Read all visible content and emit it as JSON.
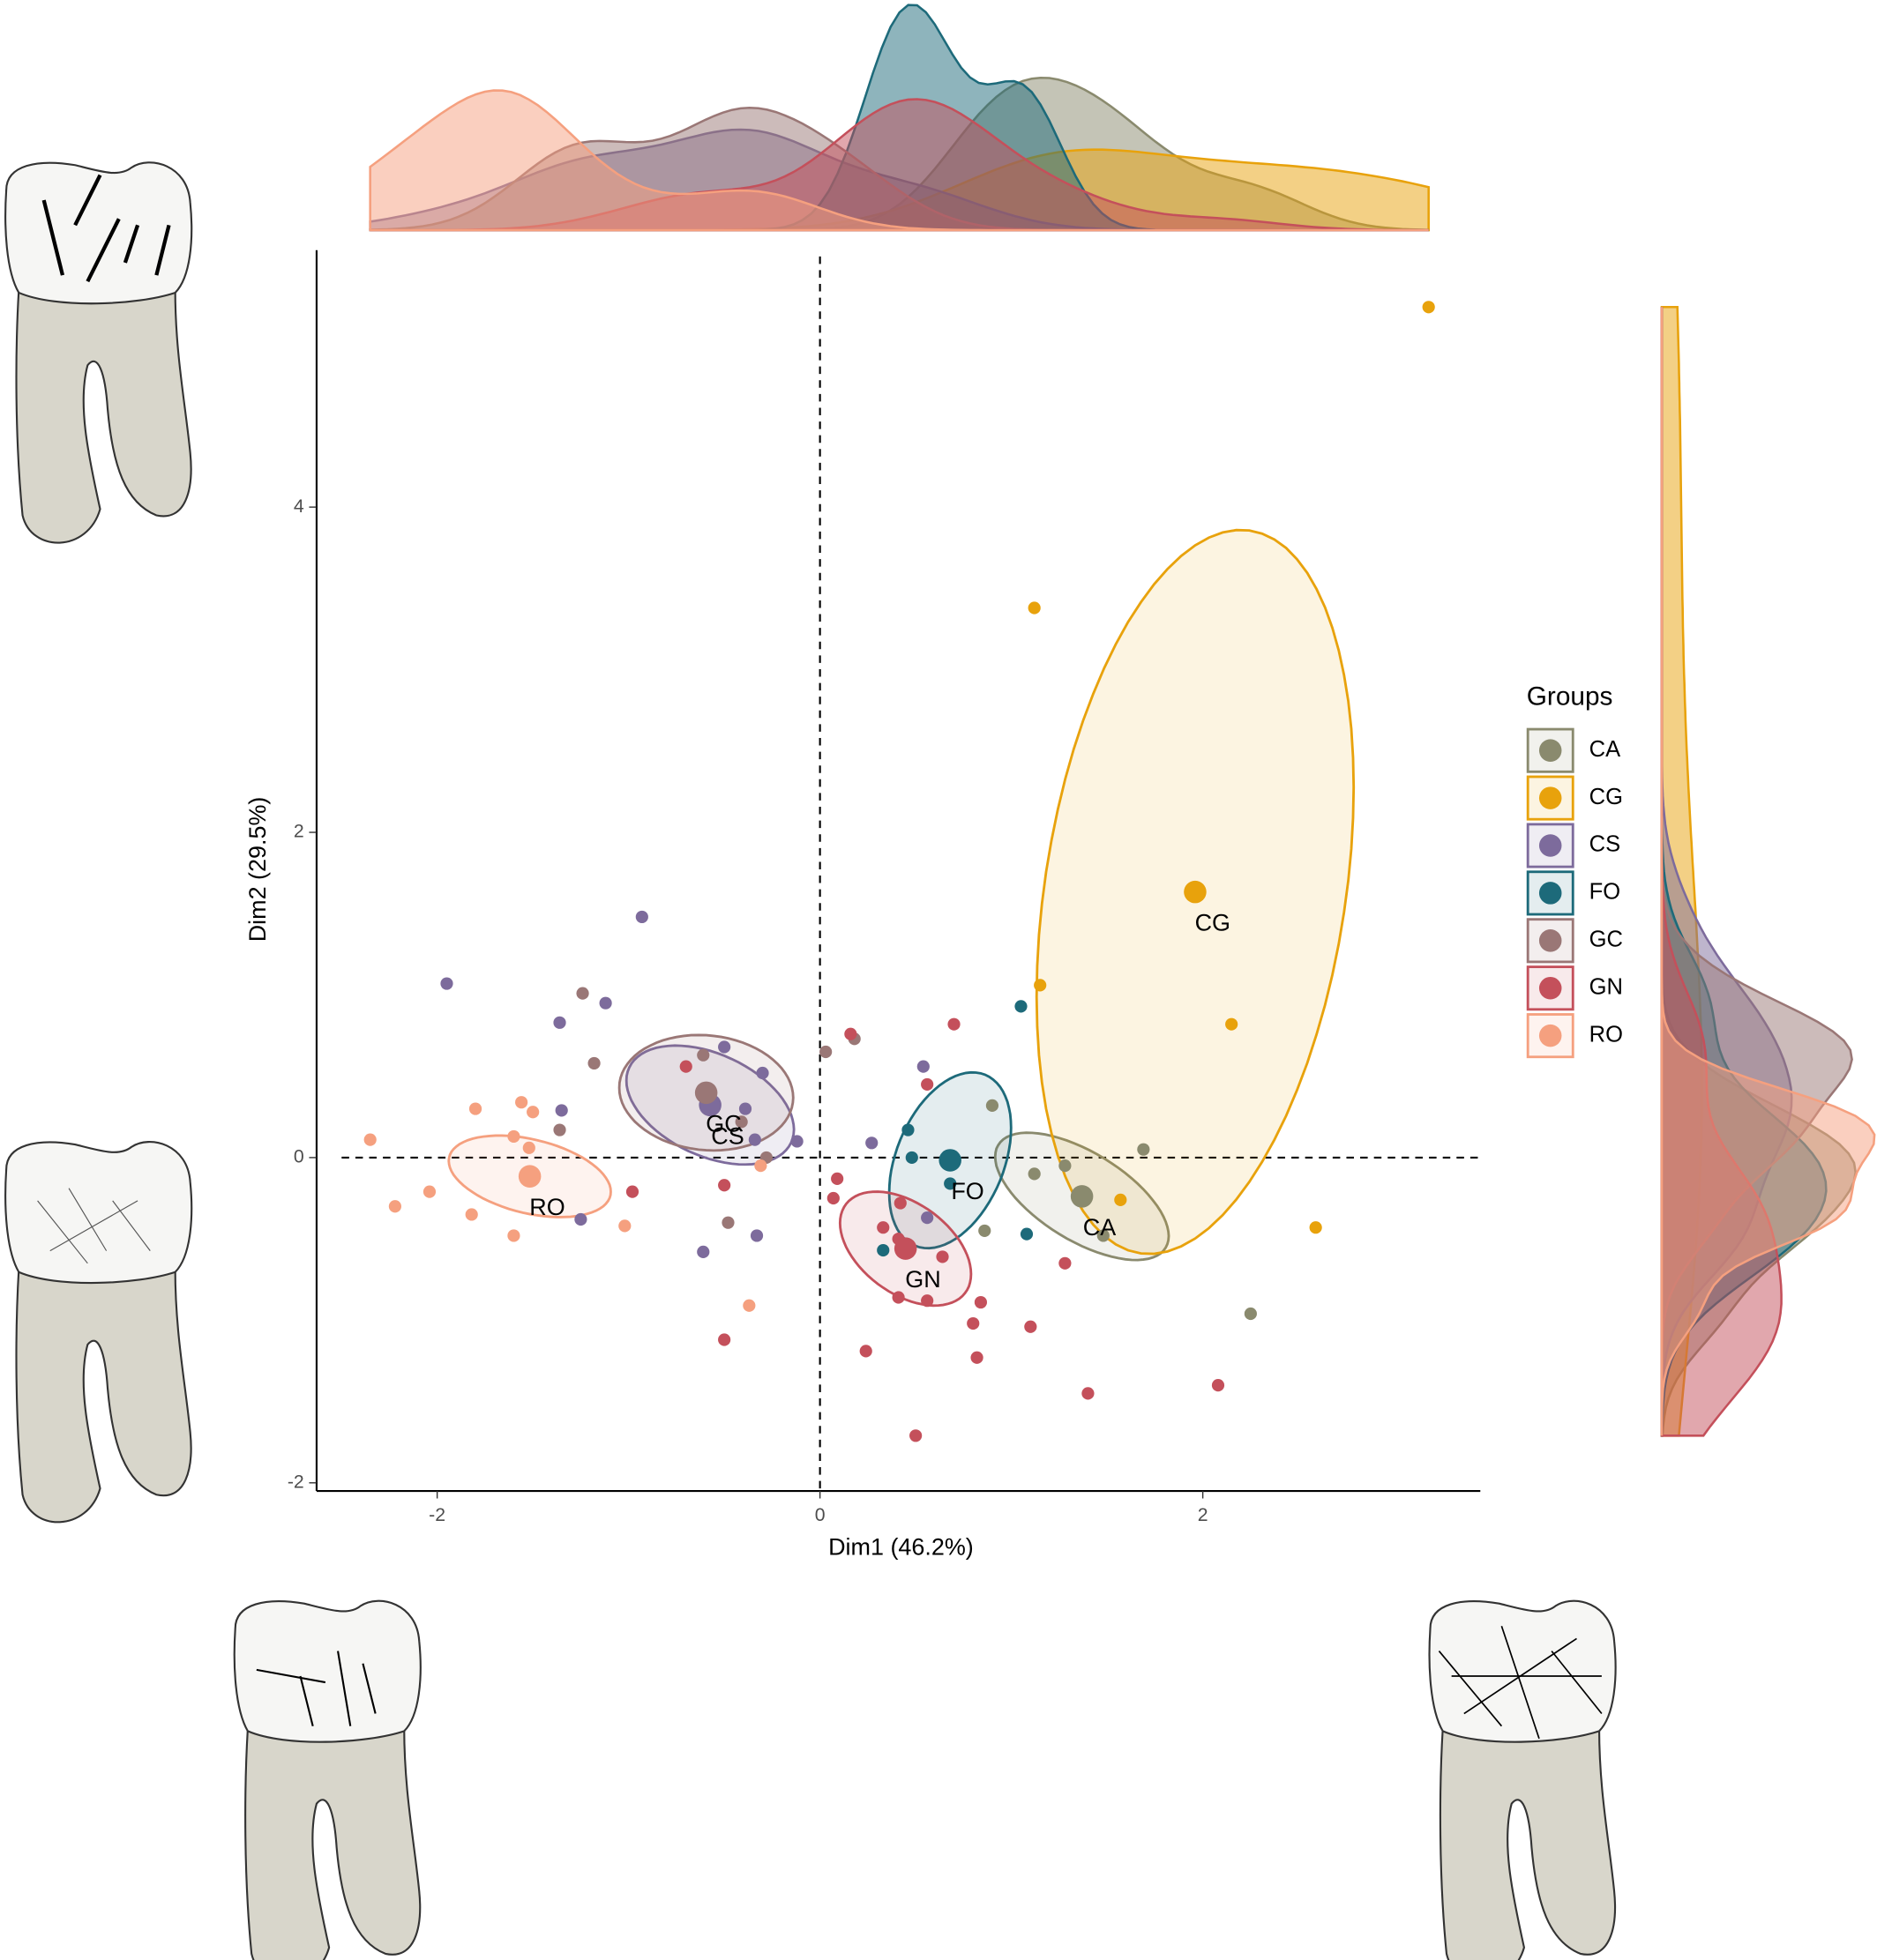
{
  "chart_data": {
    "type": "scatter",
    "x_label": "Dim1 (46.2%)",
    "y_label": "Dim2 (29.5%)",
    "legend_title": "Groups",
    "xlim": [
      -2.63,
      3.45
    ],
    "ylim": [
      -2.05,
      5.58
    ],
    "xticks": [
      -2,
      0,
      2
    ],
    "yticks": [
      -2,
      0,
      2,
      4
    ],
    "series": [
      {
        "name": "CA",
        "color": "#8a8a6e",
        "x": [
          0.9,
          1.69,
          1.12,
          1.28,
          1.48,
          0.86,
          2.25
        ],
        "y": [
          0.32,
          0.05,
          -0.1,
          -0.05,
          -0.48,
          -0.45,
          -0.96
        ]
      },
      {
        "name": "CG",
        "color": "#e8a20c",
        "x": [
          3.18,
          1.12,
          1.15,
          2.15,
          1.57,
          2.59
        ],
        "y": [
          5.23,
          3.38,
          1.06,
          0.82,
          -0.26,
          -0.43
        ]
      },
      {
        "name": "CS",
        "color": "#7d6b9c",
        "x": [
          -0.93,
          -1.95,
          -1.12,
          -1.36,
          -0.5,
          -0.3,
          -0.39,
          -0.34,
          -0.12,
          0.27,
          0.54,
          -1.35,
          -1.25,
          -0.33,
          -0.61,
          0.56
        ],
        "y": [
          1.48,
          1.07,
          0.95,
          0.83,
          0.68,
          0.52,
          0.3,
          0.11,
          0.1,
          0.09,
          0.56,
          0.29,
          -0.38,
          -0.48,
          -0.58,
          -0.37
        ]
      },
      {
        "name": "FO",
        "color": "#1d6a7a",
        "x": [
          1.05,
          0.46,
          0.48,
          0.68,
          1.08,
          0.33
        ],
        "y": [
          0.93,
          0.17,
          0.0,
          -0.16,
          -0.47,
          -0.57
        ]
      },
      {
        "name": "GC",
        "color": "#9a7776",
        "x": [
          -1.24,
          -1.18,
          -0.61,
          0.03,
          0.18,
          -0.41,
          -0.28,
          -0.48,
          -1.36
        ],
        "y": [
          1.01,
          0.58,
          0.63,
          0.65,
          0.73,
          0.22,
          0.0,
          -0.4,
          0.17
        ]
      },
      {
        "name": "GN",
        "color": "#c4505b",
        "x": [
          0.7,
          0.16,
          0.56,
          0.09,
          0.07,
          0.42,
          0.33,
          0.64,
          0.41,
          0.84,
          0.56,
          0.41,
          0.24,
          0.8,
          0.82,
          1.1,
          1.28,
          1.4,
          2.08,
          0.5,
          -0.5,
          -0.5,
          -0.98,
          -0.7
        ],
        "y": [
          0.82,
          0.76,
          0.45,
          -0.13,
          -0.25,
          -0.28,
          -0.43,
          -0.61,
          -0.5,
          -0.89,
          -0.88,
          -0.86,
          -1.19,
          -1.02,
          -1.23,
          -1.04,
          -0.65,
          -1.45,
          -1.4,
          -1.71,
          -1.12,
          -0.17,
          -0.21,
          0.56
        ]
      },
      {
        "name": "RO",
        "color": "#f5a07f",
        "x": [
          -2.35,
          -1.8,
          -1.56,
          -1.5,
          -1.6,
          -1.52,
          -2.04,
          -2.22,
          -1.82,
          -1.6,
          -1.02,
          -0.37,
          -0.31
        ],
        "y": [
          0.11,
          0.3,
          0.34,
          0.28,
          0.13,
          0.06,
          -0.21,
          -0.3,
          -0.35,
          -0.48,
          -0.42,
          -0.91,
          -0.05
        ]
      }
    ]
  }
}
